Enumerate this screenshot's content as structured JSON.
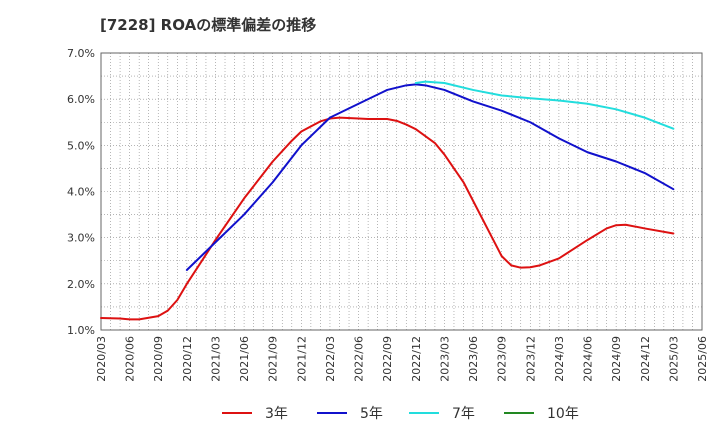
{
  "chart_data": {
    "type": "line",
    "title": "[7228]  ROAの標準偏差の推移",
    "xlabel": "",
    "ylabel": "",
    "ylim": [
      1.0,
      7.0
    ],
    "yticks": [
      "1.0%",
      "2.0%",
      "3.0%",
      "4.0%",
      "5.0%",
      "6.0%",
      "7.0%"
    ],
    "categories": [
      "2020/03",
      "2020/06",
      "2020/09",
      "2020/12",
      "2021/03",
      "2021/06",
      "2021/09",
      "2021/12",
      "2022/03",
      "2022/06",
      "2022/09",
      "2022/12",
      "2023/03",
      "2023/06",
      "2023/09",
      "2023/12",
      "2024/03",
      "2024/06",
      "2024/09",
      "2024/12",
      "2025/03",
      "2025/06"
    ],
    "grid": true,
    "legend_position": "bottom",
    "series": [
      {
        "name": "3年",
        "color": "#dd1111",
        "points": [
          [
            "2020/03",
            1.26
          ],
          [
            "2020/05",
            1.25
          ],
          [
            "2020/06",
            1.23
          ],
          [
            "2020/07",
            1.23
          ],
          [
            "2020/09",
            1.3
          ],
          [
            "2020/10",
            1.42
          ],
          [
            "2020/11",
            1.65
          ],
          [
            "2020/12",
            2.0
          ],
          [
            "2021/03",
            2.95
          ],
          [
            "2021/06",
            3.85
          ],
          [
            "2021/09",
            4.65
          ],
          [
            "2021/11",
            5.1
          ],
          [
            "2021/12",
            5.3
          ],
          [
            "2022/02",
            5.52
          ],
          [
            "2022/03",
            5.58
          ],
          [
            "2022/04",
            5.6
          ],
          [
            "2022/06",
            5.58
          ],
          [
            "2022/07",
            5.57
          ],
          [
            "2022/09",
            5.57
          ],
          [
            "2022/10",
            5.53
          ],
          [
            "2022/11",
            5.45
          ],
          [
            "2022/12",
            5.35
          ],
          [
            "2023/02",
            5.05
          ],
          [
            "2023/03",
            4.8
          ],
          [
            "2023/05",
            4.2
          ],
          [
            "2023/06",
            3.8
          ],
          [
            "2023/08",
            3.0
          ],
          [
            "2023/09",
            2.6
          ],
          [
            "2023/10",
            2.4
          ],
          [
            "2023/11",
            2.35
          ],
          [
            "2023/12",
            2.36
          ],
          [
            "2024/01",
            2.4
          ],
          [
            "2024/03",
            2.55
          ],
          [
            "2024/06",
            2.95
          ],
          [
            "2024/08",
            3.2
          ],
          [
            "2024/09",
            3.27
          ],
          [
            "2024/10",
            3.28
          ],
          [
            "2024/12",
            3.2
          ],
          [
            "2025/03",
            3.09
          ]
        ]
      },
      {
        "name": "5年",
        "color": "#1111cc",
        "points": [
          [
            "2020/12",
            2.3
          ],
          [
            "2021/03",
            2.9
          ],
          [
            "2021/06",
            3.5
          ],
          [
            "2021/09",
            4.2
          ],
          [
            "2021/12",
            5.0
          ],
          [
            "2022/03",
            5.6
          ],
          [
            "2022/06",
            5.9
          ],
          [
            "2022/09",
            6.2
          ],
          [
            "2022/11",
            6.3
          ],
          [
            "2022/12",
            6.32
          ],
          [
            "2023/01",
            6.3
          ],
          [
            "2023/03",
            6.2
          ],
          [
            "2023/06",
            5.95
          ],
          [
            "2023/09",
            5.75
          ],
          [
            "2023/12",
            5.5
          ],
          [
            "2024/03",
            5.15
          ],
          [
            "2024/06",
            4.85
          ],
          [
            "2024/09",
            4.65
          ],
          [
            "2024/12",
            4.4
          ],
          [
            "2025/03",
            4.05
          ]
        ]
      },
      {
        "name": "7年",
        "color": "#22dddd",
        "points": [
          [
            "2022/12",
            6.35
          ],
          [
            "2023/01",
            6.38
          ],
          [
            "2023/03",
            6.35
          ],
          [
            "2023/06",
            6.2
          ],
          [
            "2023/09",
            6.08
          ],
          [
            "2023/12",
            6.02
          ],
          [
            "2024/03",
            5.97
          ],
          [
            "2024/06",
            5.9
          ],
          [
            "2024/09",
            5.78
          ],
          [
            "2024/12",
            5.6
          ],
          [
            "2025/03",
            5.36
          ]
        ]
      },
      {
        "name": "10年",
        "color": "#228822",
        "points": []
      }
    ]
  }
}
